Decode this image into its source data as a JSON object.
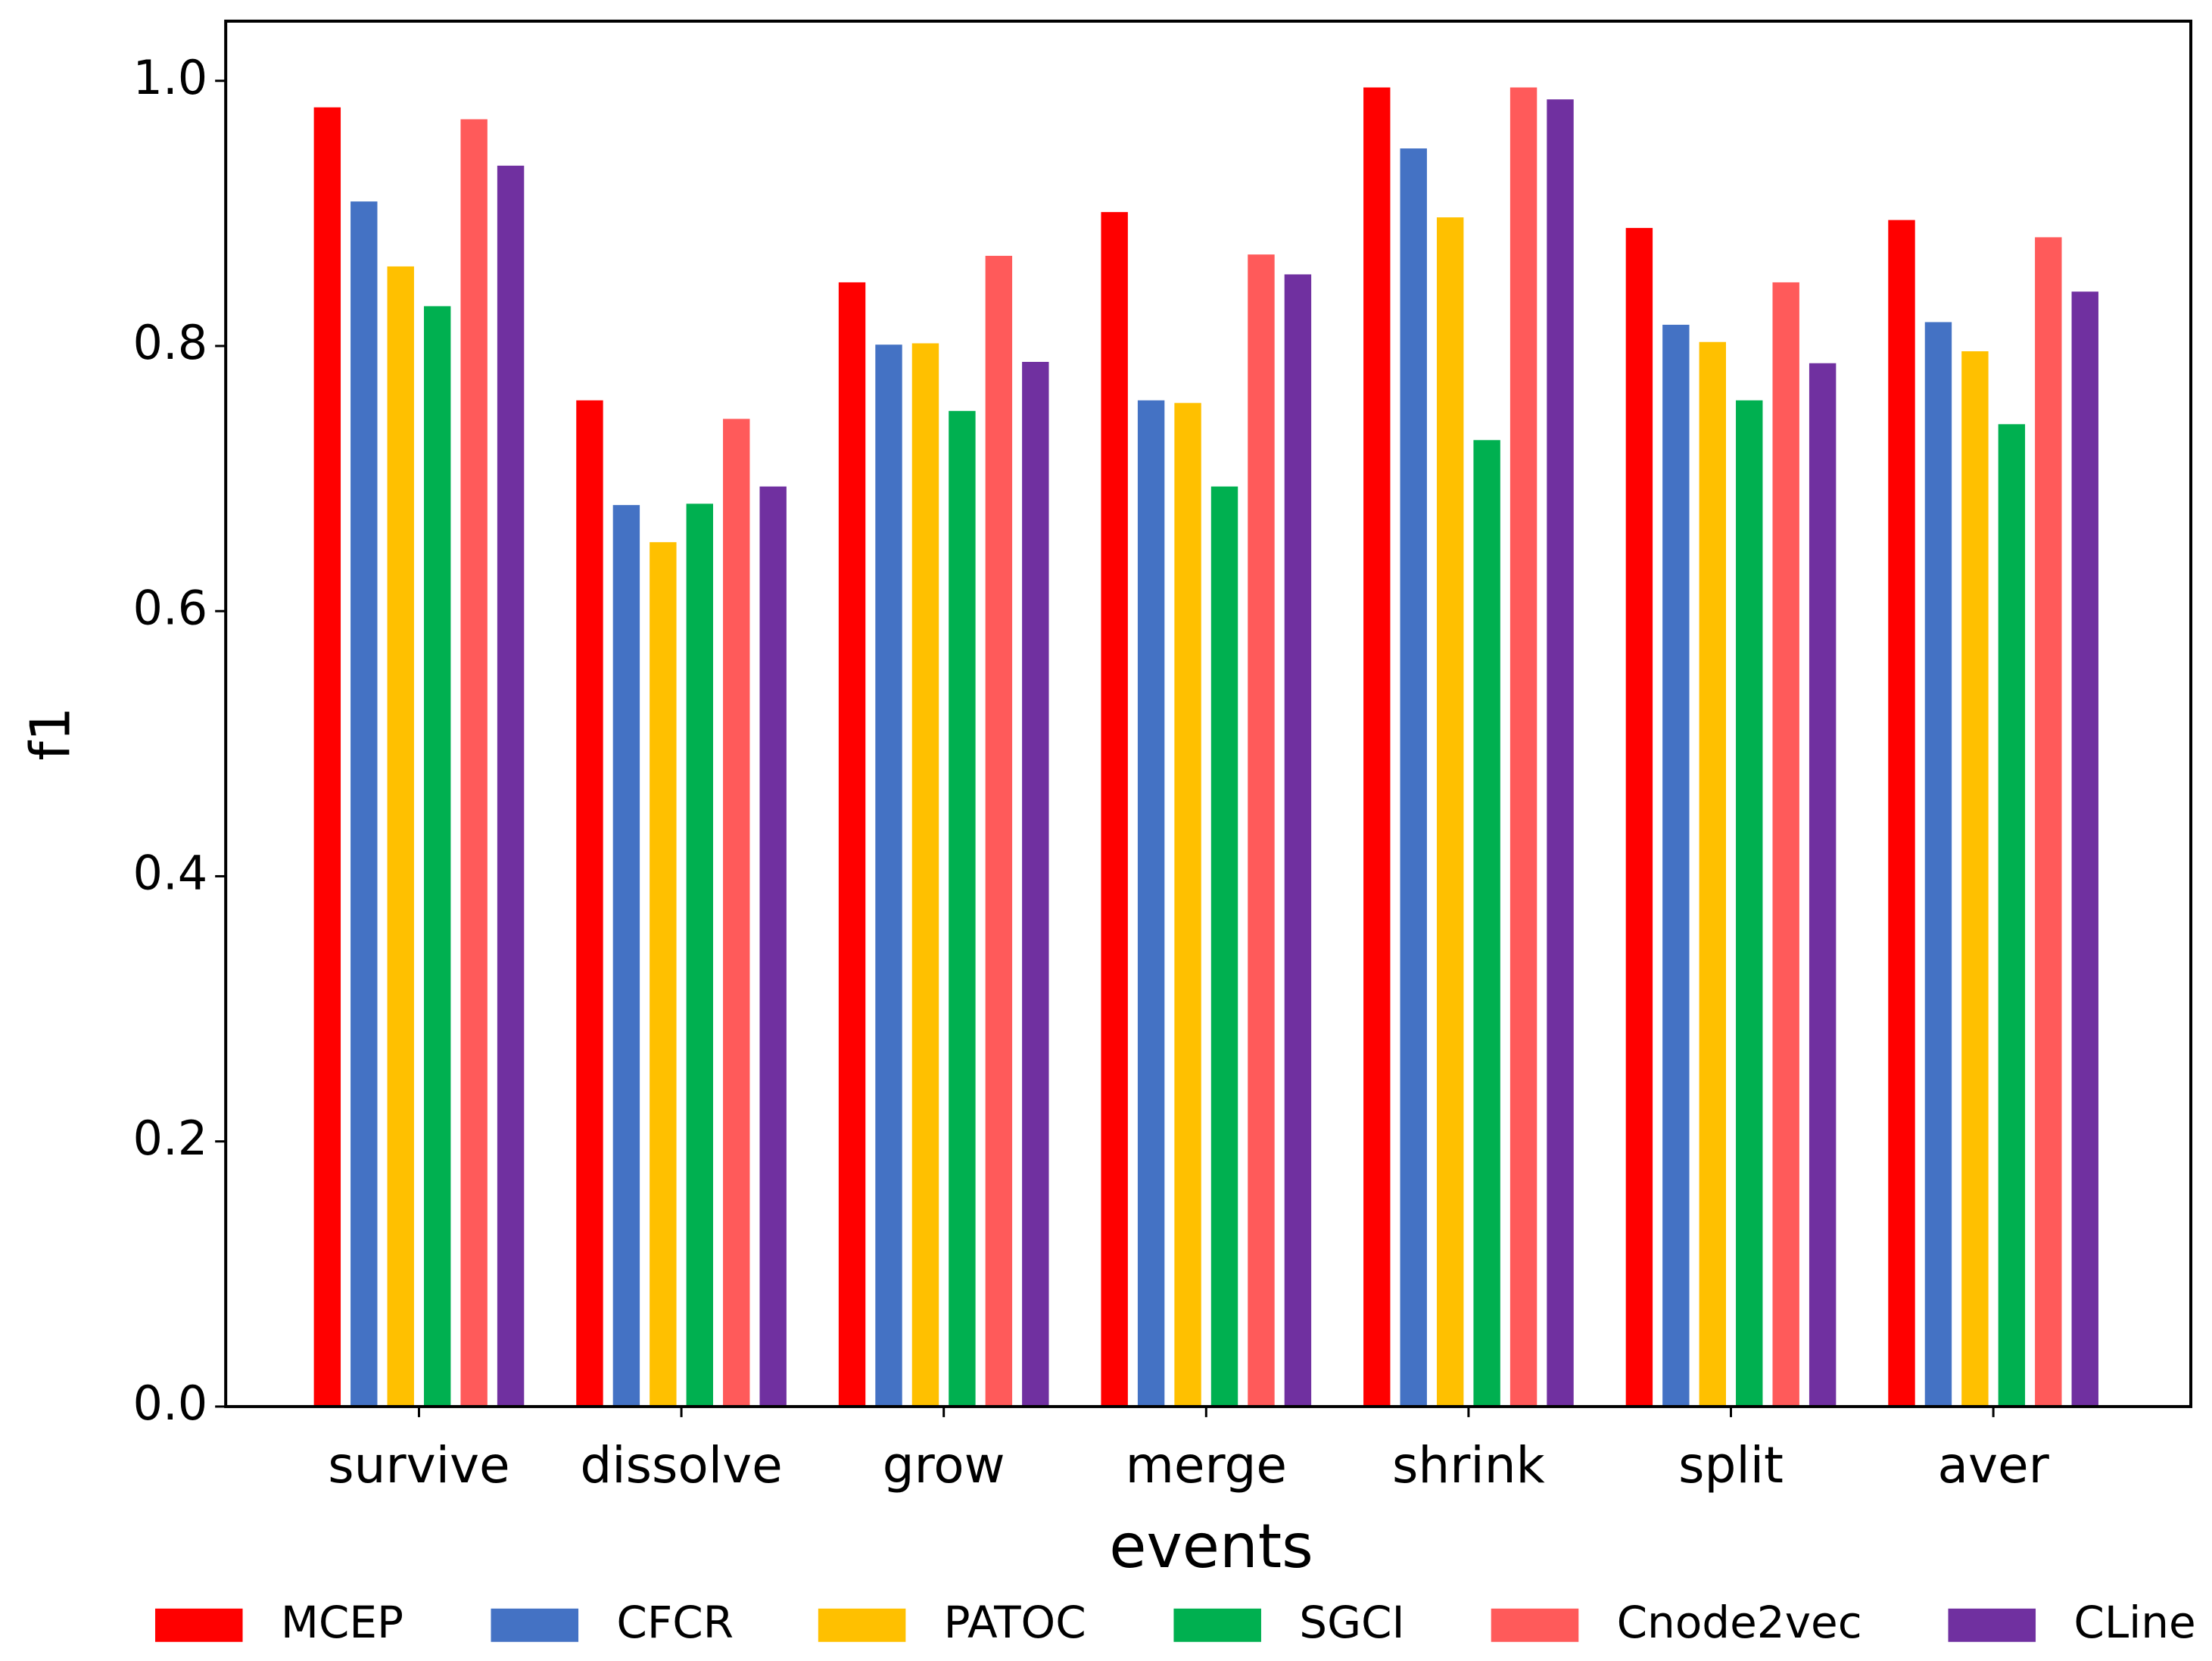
{
  "chart_data": {
    "type": "bar",
    "x_label": "events",
    "y_label": "f1",
    "categories": [
      "survive",
      "dissolve",
      "grow",
      "merge",
      "shrink",
      "split",
      "aver"
    ],
    "series": [
      {
        "name": "MCEP",
        "color": "#ff0000",
        "values": [
          0.98,
          0.759,
          0.848,
          0.901,
          0.995,
          0.889,
          0.895
        ]
      },
      {
        "name": "CFCR",
        "color": "#4472c4",
        "values": [
          0.909,
          0.68,
          0.801,
          0.759,
          0.949,
          0.816,
          0.818
        ]
      },
      {
        "name": "PATOC",
        "color": "#ffc000",
        "values": [
          0.86,
          0.652,
          0.802,
          0.757,
          0.897,
          0.803,
          0.796
        ]
      },
      {
        "name": "SGCI",
        "color": "#00b050",
        "values": [
          0.83,
          0.681,
          0.751,
          0.694,
          0.729,
          0.759,
          0.741
        ]
      },
      {
        "name": "Cnode2vec",
        "color": "#ff5a5a",
        "values": [
          0.971,
          0.745,
          0.868,
          0.869,
          0.995,
          0.848,
          0.882
        ]
      },
      {
        "name": "CLine",
        "color": "#7030a0",
        "values": [
          0.936,
          0.694,
          0.788,
          0.854,
          0.986,
          0.787,
          0.841
        ]
      }
    ],
    "ylim": [
      0,
      1.045
    ],
    "yticks": [
      {
        "value": 0,
        "label": "0.0"
      },
      0.2,
      0.4,
      0.6,
      0.8,
      {
        "value": 1,
        "label": "1.0"
      }
    ]
  }
}
